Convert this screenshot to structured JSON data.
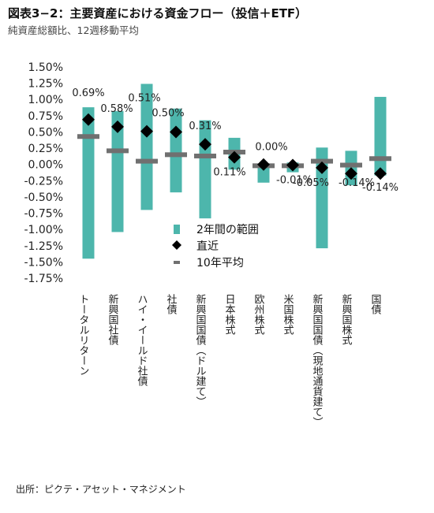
{
  "header": {
    "title": "図表3−2：主要資産における資金フロー（投信＋ETF）",
    "subtitle": "純資産総額比、12週移動平均"
  },
  "source": "出所：ピクテ・アセット・マネジメント",
  "colors": {
    "range": "#4db6ac",
    "latest": "#000000",
    "avg": "#707070"
  },
  "chart_data": {
    "type": "bar",
    "categories": [
      "トータルリターン",
      "新興国社債",
      "ハイ・イールド社債",
      "社債",
      "新興国国債（ドル建て）",
      "日本株式",
      "欧州株式",
      "米国株式",
      "新興国国債（現地通貨建て）",
      "新興国株式",
      "国債"
    ],
    "series": [
      {
        "name": "2年間の範囲",
        "type": "range",
        "low": [
          -1.45,
          -1.04,
          -0.7,
          -0.43,
          -0.83,
          -0.08,
          -0.28,
          -0.12,
          -1.29,
          -0.32,
          -0.17
        ],
        "high": [
          0.88,
          0.82,
          1.24,
          0.86,
          0.68,
          0.41,
          -0.02,
          0.03,
          0.26,
          0.21,
          1.04
        ]
      },
      {
        "name": "直近",
        "type": "marker",
        "values": [
          0.69,
          0.58,
          0.51,
          0.5,
          0.31,
          0.11,
          0.0,
          -0.01,
          -0.05,
          -0.14,
          -0.14
        ]
      },
      {
        "name": "10年平均",
        "type": "dash",
        "values": [
          0.43,
          0.21,
          0.05,
          0.15,
          0.13,
          0.19,
          -0.02,
          -0.02,
          0.05,
          -0.01,
          0.09
        ]
      }
    ],
    "data_labels": [
      "0.69%",
      "0.58%",
      "0.51%",
      "0.50%",
      "0.31%",
      "0.11%",
      "0.00%",
      "-0.01%",
      "-0.05%",
      "-0.14%",
      "-0.14%"
    ],
    "y_ticks": [
      "1.50%",
      "1.25%",
      "1.00%",
      "0.75%",
      "0.50%",
      "0.25%",
      "0.00%",
      "-0.25%",
      "-0.50%",
      "-0.75%",
      "-1.00%",
      "-1.25%",
      "-1.50%",
      "-1.75%"
    ],
    "ylim": [
      -1.75,
      1.5
    ],
    "legend": {
      "position": "center-right",
      "items": [
        "2年間の範囲",
        "直近",
        "10年平均"
      ]
    }
  }
}
